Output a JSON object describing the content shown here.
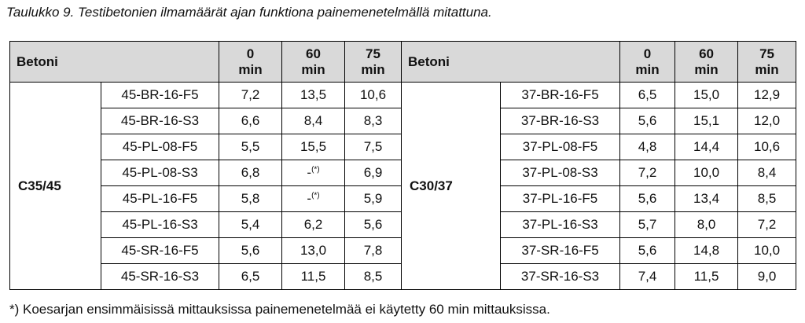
{
  "caption": "Taulukko 9. Testibetonien ilmamäärät ajan funktiona painemenetelmällä mitattuna.",
  "table": {
    "sides": [
      {
        "header": "Betoni",
        "times": [
          [
            "0",
            "min"
          ],
          [
            "60",
            "min"
          ],
          [
            "75",
            "min"
          ]
        ],
        "class": "C35/45",
        "rows": [
          [
            "45-BR-16-F5",
            "7,2",
            "13,5",
            "10,6"
          ],
          [
            "45-BR-16-S3",
            "6,6",
            "8,4",
            "8,3"
          ],
          [
            "45-PL-08-F5",
            "5,5",
            "15,5",
            "7,5"
          ],
          [
            "45-PL-08-S3",
            "6,8",
            {
              "text": "-",
              "note": "(*)"
            },
            "6,9"
          ],
          [
            "45-PL-16-F5",
            "5,8",
            {
              "text": "-",
              "note": "(*)"
            },
            "5,9"
          ],
          [
            "45-PL-16-S3",
            "5,4",
            "6,2",
            "5,6"
          ],
          [
            "45-SR-16-F5",
            "5,6",
            "13,0",
            "7,8"
          ],
          [
            "45-SR-16-S3",
            "6,5",
            "11,5",
            "8,5"
          ]
        ]
      },
      {
        "header": "Betoni",
        "times": [
          [
            "0",
            "min"
          ],
          [
            "60",
            "min"
          ],
          [
            "75",
            "min"
          ]
        ],
        "class": "C30/37",
        "rows": [
          [
            "37-BR-16-F5",
            "6,5",
            "15,0",
            "12,9"
          ],
          [
            "37-BR-16-S3",
            "5,6",
            "15,1",
            "12,0"
          ],
          [
            "37-PL-08-F5",
            "4,8",
            "14,4",
            "10,6"
          ],
          [
            "37-PL-08-S3",
            "7,2",
            "10,0",
            "8,4"
          ],
          [
            "37-PL-16-F5",
            "5,6",
            "13,4",
            "8,5"
          ],
          [
            "37-PL-16-S3",
            "5,7",
            "8,0",
            "7,2"
          ],
          [
            "37-SR-16-F5",
            "5,6",
            "14,8",
            "10,0"
          ],
          [
            "37-SR-16-S3",
            "7,4",
            "11,5",
            "9,0"
          ]
        ]
      }
    ]
  },
  "footnote": "*) Koesarjan ensimmäisissä mittauksissa painemenetelmää ei käytetty 60 min mittauksissa."
}
